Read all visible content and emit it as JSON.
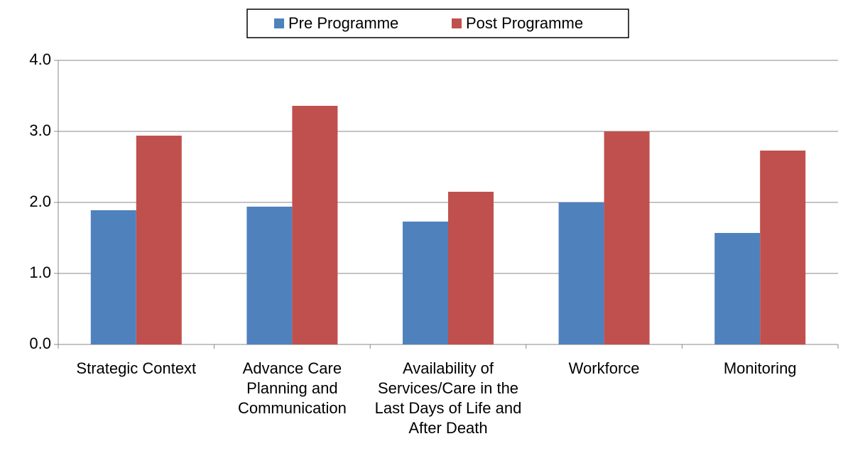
{
  "chart_data": {
    "type": "bar",
    "categories": [
      "Strategic Context",
      "Advance Care Planning and Communication",
      "Availability of Services/Care in the Last Days of Life and After Death",
      "Workforce",
      "Monitoring"
    ],
    "series": [
      {
        "name": "Pre Programme",
        "color": "#4f81bd",
        "values": [
          1.89,
          1.94,
          1.73,
          2.0,
          1.57
        ]
      },
      {
        "name": "Post Programme",
        "color": "#c0504d",
        "values": [
          2.94,
          3.36,
          2.15,
          3.0,
          2.73
        ]
      }
    ],
    "ylim": [
      0,
      4
    ],
    "yticks": [
      {
        "value": 0,
        "label": "0.0"
      },
      {
        "value": 1,
        "label": "1.0"
      },
      {
        "value": 2,
        "label": "2.0"
      },
      {
        "value": 3,
        "label": "3.0"
      },
      {
        "value": 4,
        "label": "4.0"
      }
    ],
    "grid": true,
    "legend": "top"
  }
}
